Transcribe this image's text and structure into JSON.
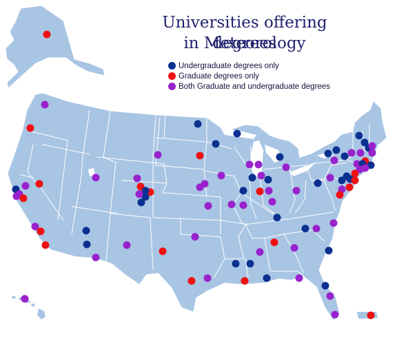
{
  "title_line1": "Universities offering degrees",
  "title_line2": "in Meteorology",
  "colors": {
    "land": "#a9c5e4",
    "border": "#ffffff",
    "undergraduate": "#0a3090",
    "graduate": "#ee1111",
    "both": "#9922cc"
  },
  "legend": [
    {
      "key": "undergraduate",
      "label": "Undergraduate degrees only"
    },
    {
      "key": "graduate",
      "label": "Graduate degrees only"
    },
    {
      "key": "both",
      "label": "Both Graduate and undergraduate degrees"
    }
  ]
}
